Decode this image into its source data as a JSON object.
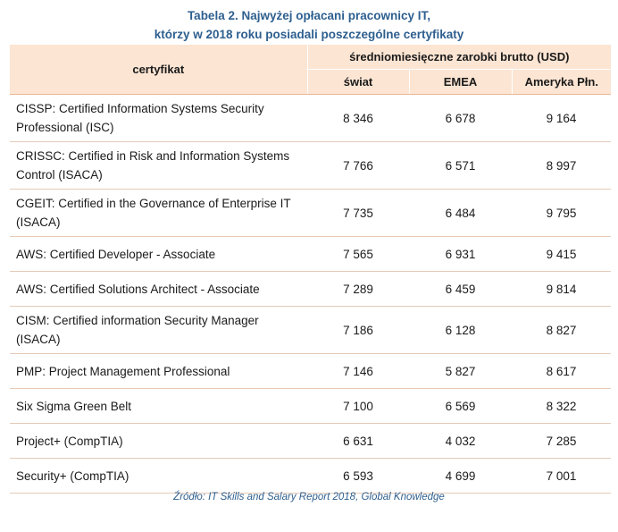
{
  "title": {
    "line1": "Tabela 2. Najwyżej opłacani pracownicy IT,",
    "line2": "którzy w 2018 roku posiadali poszczególne certyfikaty"
  },
  "table": {
    "header": {
      "cert": "certyfikat",
      "group": "średniomiesięczne zarobki brutto (USD)",
      "world": "świat",
      "emea": "EMEA",
      "na": "Ameryka Płn."
    },
    "rows": [
      {
        "cert": "CISSP: Certified Information Systems Security Professional (ISC)",
        "world": "8 346",
        "emea": "6 678",
        "na": "9 164"
      },
      {
        "cert": "CRISSC: Certified in Risk and Information Systems Control (ISACA)",
        "world": "7 766",
        "emea": "6 571",
        "na": "8 997"
      },
      {
        "cert": "CGEIT: Certified in the Governance of Enterprise IT (ISACA)",
        "world": "7 735",
        "emea": "6 484",
        "na": "9 795"
      },
      {
        "cert": "AWS: Certified Developer - Associate",
        "world": "7 565",
        "emea": "6 931",
        "na": "9 415"
      },
      {
        "cert": "AWS: Certified Solutions Architect - Associate",
        "world": "7 289",
        "emea": "6 459",
        "na": "9 814"
      },
      {
        "cert": "CISM: Certified information Security Manager (ISACA)",
        "world": "7 186",
        "emea": "6 128",
        "na": "8 827"
      },
      {
        "cert": "PMP: Project Management Professional",
        "world": "7 146",
        "emea": "5 827",
        "na": "8 617"
      },
      {
        "cert": "Six Sigma Green Belt",
        "world": "7 100",
        "emea": "6 569",
        "na": "8 322"
      },
      {
        "cert": "Project+ (CompTIA)",
        "world": "6 631",
        "emea": "4 032",
        "na": "7 285"
      },
      {
        "cert": "Security+ (CompTIA)",
        "world": "6 593",
        "emea": "4 699",
        "na": "7 001"
      }
    ]
  },
  "source": "Źródło: IT Skills and Salary Report 2018, Global Knowledge",
  "colors": {
    "title": "#2e5f8f",
    "header_bg": "#fce5d3",
    "row_border": "#e6cbb8"
  }
}
